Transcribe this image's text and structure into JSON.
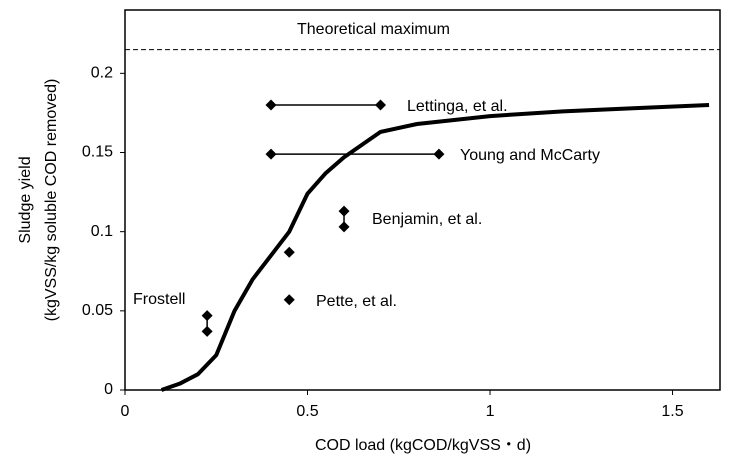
{
  "chart_data": {
    "type": "scatter",
    "x_label": "COD load (kgCOD/kgVSS・d)",
    "y_label": [
      "Sludge yield",
      "(kgVSS/kg  soluble COD removed)"
    ],
    "xlim": [
      0,
      1.63
    ],
    "ylim": [
      0,
      0.24
    ],
    "xticks": [
      0,
      0.5,
      1,
      1.5
    ],
    "yticks": [
      0,
      0.05,
      0.1,
      0.15,
      0.2
    ],
    "reference_lines": [
      {
        "label": "Theoretical maximum",
        "value": 0.215
      }
    ],
    "curve": {
      "color": "#000000",
      "x": [
        0.1,
        0.15,
        0.2,
        0.25,
        0.3,
        0.35,
        0.4,
        0.45,
        0.5,
        0.55,
        0.6,
        0.7,
        0.8,
        1.0,
        1.2,
        1.4,
        1.6
      ],
      "values": [
        0,
        0.004,
        0.01,
        0.022,
        0.05,
        0.07,
        0.085,
        0.1,
        0.124,
        0.137,
        0.147,
        0.163,
        0.168,
        0.173,
        0.176,
        0.178,
        0.18
      ]
    },
    "series": [
      {
        "name": "Lettinga, et al.",
        "color": "#000000",
        "connected": true,
        "x": [
          0.4,
          0.7
        ],
        "values": [
          0.18,
          0.18
        ]
      },
      {
        "name": "Young and McCarty",
        "color": "#000000",
        "connected": true,
        "x": [
          0.4,
          0.86
        ],
        "values": [
          0.149,
          0.149
        ]
      },
      {
        "name": "Benjamin, et al.",
        "color": "#000000",
        "connected": true,
        "x": [
          0.6,
          0.6
        ],
        "values": [
          0.113,
          0.103
        ]
      },
      {
        "name": "Pette, et al.",
        "color": "#000000",
        "connected": false,
        "x": [
          0.45,
          0.45
        ],
        "values": [
          0.087,
          0.057
        ]
      },
      {
        "name": "Frostell",
        "color": "#000000",
        "connected": true,
        "x": [
          0.225,
          0.225
        ],
        "values": [
          0.047,
          0.037
        ]
      }
    ]
  }
}
